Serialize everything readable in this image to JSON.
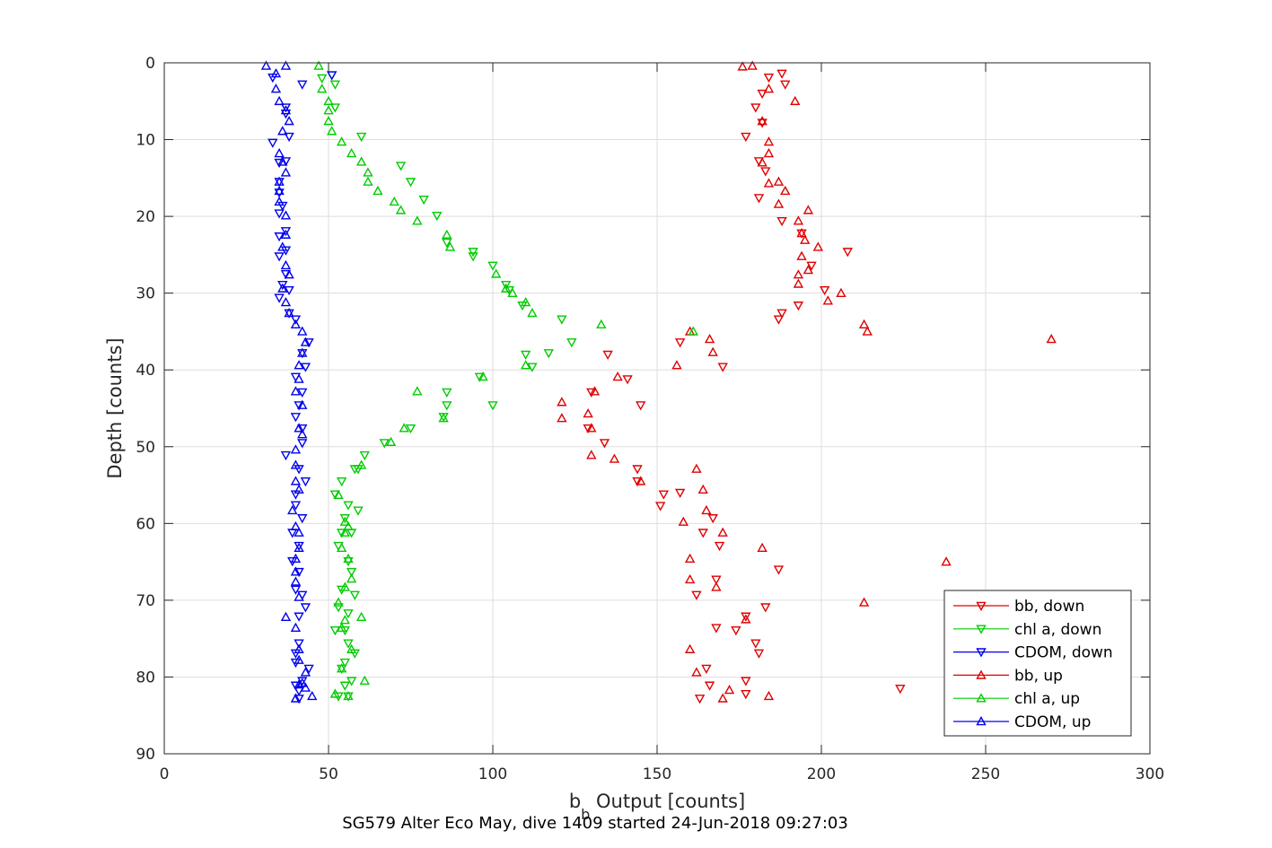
{
  "chart_data": {
    "type": "scatter",
    "xlabel": "b",
    "xlabel_sub": "b",
    "xlabel_rest": " Output [counts]",
    "ylabel": "Depth [counts]",
    "caption": "SG579 Alter Eco May, dive 1409 started 24-Jun-2018 09:27:03",
    "xlim": [
      0,
      300
    ],
    "ylim": [
      0,
      90
    ],
    "y_reversed": true,
    "grid": true,
    "legend_position": "bottom-right",
    "xticks": [
      0,
      50,
      100,
      150,
      200,
      250,
      300
    ],
    "yticks": [
      0,
      10,
      20,
      30,
      40,
      50,
      60,
      70,
      80,
      90
    ],
    "series": [
      {
        "name": "bb, down",
        "color": "#e00000",
        "marker": "triangle-down",
        "points": [
          [
            188,
            1.4
          ],
          [
            184,
            1.9
          ],
          [
            189,
            2.8
          ],
          [
            182,
            4.0
          ],
          [
            180,
            5.8
          ],
          [
            182,
            7.8
          ],
          [
            177,
            9.6
          ],
          [
            181,
            12.8
          ],
          [
            183,
            14.1
          ],
          [
            181,
            17.6
          ],
          [
            188,
            20.6
          ],
          [
            194,
            22.2
          ],
          [
            208,
            24.6
          ],
          [
            197,
            26.4
          ],
          [
            201,
            29.6
          ],
          [
            193,
            31.6
          ],
          [
            188,
            32.6
          ],
          [
            187,
            33.4
          ],
          [
            157,
            36.4
          ],
          [
            135,
            38.0
          ],
          [
            170,
            39.6
          ],
          [
            141,
            41.2
          ],
          [
            130,
            42.9
          ],
          [
            145,
            44.6
          ],
          [
            129,
            47.6
          ],
          [
            134,
            49.5
          ],
          [
            144,
            52.9
          ],
          [
            152,
            56.2
          ],
          [
            144,
            54.5
          ],
          [
            157,
            56.0
          ],
          [
            151,
            57.7
          ],
          [
            167,
            59.3
          ],
          [
            164,
            61.2
          ],
          [
            169,
            62.9
          ],
          [
            187,
            66.0
          ],
          [
            168,
            67.3
          ],
          [
            162,
            69.3
          ],
          [
            183,
            70.9
          ],
          [
            177,
            72.1
          ],
          [
            174,
            73.9
          ],
          [
            168,
            73.6
          ],
          [
            180,
            75.6
          ],
          [
            165,
            78.9
          ],
          [
            181,
            76.9
          ],
          [
            177,
            80.5
          ],
          [
            166,
            81.1
          ],
          [
            177,
            82.2
          ],
          [
            224,
            81.5
          ],
          [
            163,
            82.8
          ]
        ]
      },
      {
        "name": "chl a, down",
        "color": "#00cc00",
        "marker": "triangle-down",
        "points": [
          [
            51,
            1.6
          ],
          [
            48,
            2.0
          ],
          [
            52,
            2.8
          ],
          [
            52,
            5.8
          ],
          [
            60,
            9.6
          ],
          [
            72,
            13.4
          ],
          [
            75,
            15.5
          ],
          [
            79,
            17.8
          ],
          [
            83,
            19.9
          ],
          [
            86,
            23.4
          ],
          [
            94,
            24.6
          ],
          [
            94,
            25.2
          ],
          [
            100,
            26.4
          ],
          [
            104,
            28.9
          ],
          [
            105,
            29.6
          ],
          [
            109,
            31.6
          ],
          [
            121,
            33.4
          ],
          [
            124,
            36.4
          ],
          [
            117,
            37.8
          ],
          [
            110,
            38.0
          ],
          [
            112,
            39.6
          ],
          [
            96,
            40.9
          ],
          [
            86,
            42.9
          ],
          [
            86,
            44.6
          ],
          [
            100,
            44.6
          ],
          [
            85,
            46.1
          ],
          [
            75,
            47.6
          ],
          [
            67,
            49.5
          ],
          [
            61,
            51.1
          ],
          [
            59,
            52.9
          ],
          [
            58,
            52.9
          ],
          [
            54,
            54.5
          ],
          [
            52,
            56.2
          ],
          [
            56,
            57.6
          ],
          [
            59,
            58.3
          ],
          [
            55,
            59.3
          ],
          [
            54,
            61.2
          ],
          [
            57,
            61.2
          ],
          [
            53,
            62.9
          ],
          [
            56,
            64.9
          ],
          [
            57,
            66.3
          ],
          [
            54,
            68.6
          ],
          [
            58,
            69.3
          ],
          [
            53,
            70.9
          ],
          [
            56,
            71.7
          ],
          [
            52,
            73.9
          ],
          [
            55,
            73.9
          ],
          [
            56,
            75.6
          ],
          [
            58,
            76.9
          ],
          [
            55,
            78.1
          ],
          [
            54,
            78.9
          ],
          [
            57,
            80.5
          ],
          [
            55,
            81.1
          ],
          [
            56,
            82.5
          ],
          [
            53,
            82.5
          ]
        ]
      },
      {
        "name": "CDOM, down",
        "color": "#0000ee",
        "marker": "triangle-down",
        "points": [
          [
            33,
            1.9
          ],
          [
            51,
            1.6
          ],
          [
            42,
            2.8
          ],
          [
            37,
            5.8
          ],
          [
            37,
            6.6
          ],
          [
            38,
            9.6
          ],
          [
            33,
            10.4
          ],
          [
            37,
            12.8
          ],
          [
            35,
            13.0
          ],
          [
            35,
            15.5
          ],
          [
            35,
            16.9
          ],
          [
            36,
            18.6
          ],
          [
            35,
            19.6
          ],
          [
            37,
            21.9
          ],
          [
            35,
            22.6
          ],
          [
            37,
            24.4
          ],
          [
            35,
            25.2
          ],
          [
            37,
            27.5
          ],
          [
            36,
            28.9
          ],
          [
            38,
            29.6
          ],
          [
            35,
            30.6
          ],
          [
            38,
            32.6
          ],
          [
            40,
            33.4
          ],
          [
            44,
            36.4
          ],
          [
            42,
            37.8
          ],
          [
            43,
            39.6
          ],
          [
            40,
            40.9
          ],
          [
            42,
            42.9
          ],
          [
            41,
            44.6
          ],
          [
            40,
            46.1
          ],
          [
            42,
            47.6
          ],
          [
            42,
            49.5
          ],
          [
            37,
            51.1
          ],
          [
            41,
            52.9
          ],
          [
            43,
            54.5
          ],
          [
            40,
            56.2
          ],
          [
            40,
            57.6
          ],
          [
            42,
            59.3
          ],
          [
            39,
            61.2
          ],
          [
            41,
            62.9
          ],
          [
            39,
            64.9
          ],
          [
            41,
            66.3
          ],
          [
            40,
            68.6
          ],
          [
            42,
            69.3
          ],
          [
            43,
            70.9
          ],
          [
            41,
            72.1
          ],
          [
            41,
            75.6
          ],
          [
            40,
            76.9
          ],
          [
            40,
            78.1
          ],
          [
            44,
            78.9
          ],
          [
            42,
            80.5
          ],
          [
            40,
            81.1
          ],
          [
            41,
            81.8
          ],
          [
            41,
            82.8
          ]
        ]
      },
      {
        "name": "bb, up",
        "color": "#e00000",
        "marker": "triangle-up",
        "points": [
          [
            176,
            0.5
          ],
          [
            179,
            0.4
          ],
          [
            184,
            3.4
          ],
          [
            192,
            5.0
          ],
          [
            182,
            7.6
          ],
          [
            184,
            10.3
          ],
          [
            184,
            11.8
          ],
          [
            182,
            13.0
          ],
          [
            187,
            15.5
          ],
          [
            189,
            16.7
          ],
          [
            184,
            15.7
          ],
          [
            187,
            18.4
          ],
          [
            196,
            19.2
          ],
          [
            193,
            20.6
          ],
          [
            199,
            24.0
          ],
          [
            194,
            22.2
          ],
          [
            195,
            23.1
          ],
          [
            194,
            25.2
          ],
          [
            196,
            27.0
          ],
          [
            193,
            27.6
          ],
          [
            193,
            28.8
          ],
          [
            206,
            30.0
          ],
          [
            202,
            31.0
          ],
          [
            213,
            34.1
          ],
          [
            214,
            35.0
          ],
          [
            270,
            36.0
          ],
          [
            166,
            36.0
          ],
          [
            167,
            37.7
          ],
          [
            160,
            35.0
          ],
          [
            156,
            39.4
          ],
          [
            138,
            40.9
          ],
          [
            131,
            42.8
          ],
          [
            121,
            44.2
          ],
          [
            129,
            45.7
          ],
          [
            121,
            46.3
          ],
          [
            130,
            47.6
          ],
          [
            130,
            51.1
          ],
          [
            137,
            51.6
          ],
          [
            145,
            54.5
          ],
          [
            162,
            52.9
          ],
          [
            164,
            55.6
          ],
          [
            158,
            59.8
          ],
          [
            165,
            58.3
          ],
          [
            170,
            61.2
          ],
          [
            182,
            63.2
          ],
          [
            238,
            65.0
          ],
          [
            160,
            64.6
          ],
          [
            160,
            67.3
          ],
          [
            168,
            68.3
          ],
          [
            213,
            70.3
          ],
          [
            177,
            72.5
          ],
          [
            160,
            76.4
          ],
          [
            162,
            79.4
          ],
          [
            172,
            81.7
          ],
          [
            170,
            82.8
          ],
          [
            184,
            82.5
          ]
        ]
      },
      {
        "name": "chl a, up",
        "color": "#00cc00",
        "marker": "triangle-up",
        "points": [
          [
            47,
            0.4
          ],
          [
            48,
            3.4
          ],
          [
            50,
            5.0
          ],
          [
            50,
            6.2
          ],
          [
            50,
            7.6
          ],
          [
            51,
            8.9
          ],
          [
            54,
            10.3
          ],
          [
            57,
            11.8
          ],
          [
            60,
            12.9
          ],
          [
            62,
            14.3
          ],
          [
            62,
            15.5
          ],
          [
            65,
            16.7
          ],
          [
            70,
            18.1
          ],
          [
            72,
            19.2
          ],
          [
            77,
            20.6
          ],
          [
            86,
            22.4
          ],
          [
            87,
            24.0
          ],
          [
            101,
            27.5
          ],
          [
            104,
            29.4
          ],
          [
            106,
            30.0
          ],
          [
            110,
            31.2
          ],
          [
            112,
            32.6
          ],
          [
            133,
            34.1
          ],
          [
            161,
            35.0
          ],
          [
            110,
            39.4
          ],
          [
            97,
            40.9
          ],
          [
            77,
            42.8
          ],
          [
            85,
            46.3
          ],
          [
            73,
            47.6
          ],
          [
            69,
            49.4
          ],
          [
            60,
            52.4
          ],
          [
            53,
            56.3
          ],
          [
            55,
            59.8
          ],
          [
            56,
            60.4
          ],
          [
            55,
            61.2
          ],
          [
            54,
            63.2
          ],
          [
            56,
            64.6
          ],
          [
            57,
            67.2
          ],
          [
            55,
            68.3
          ],
          [
            53,
            70.3
          ],
          [
            60,
            72.2
          ],
          [
            55,
            72.6
          ],
          [
            54,
            73.6
          ],
          [
            57,
            76.4
          ],
          [
            54,
            78.9
          ],
          [
            61,
            80.5
          ],
          [
            52,
            82.2
          ],
          [
            56,
            82.5
          ]
        ]
      },
      {
        "name": "CDOM, up",
        "color": "#0000ee",
        "marker": "triangle-up",
        "points": [
          [
            31,
            0.4
          ],
          [
            37,
            0.4
          ],
          [
            34,
            1.4
          ],
          [
            34,
            3.4
          ],
          [
            35,
            5.0
          ],
          [
            37,
            6.2
          ],
          [
            38,
            7.6
          ],
          [
            36,
            8.9
          ],
          [
            35,
            11.8
          ],
          [
            36,
            12.9
          ],
          [
            37,
            14.3
          ],
          [
            35,
            15.5
          ],
          [
            35,
            16.7
          ],
          [
            35,
            18.1
          ],
          [
            37,
            19.9
          ],
          [
            37,
            22.4
          ],
          [
            36,
            24.0
          ],
          [
            37,
            26.4
          ],
          [
            38,
            27.6
          ],
          [
            36,
            29.4
          ],
          [
            37,
            31.2
          ],
          [
            38,
            32.6
          ],
          [
            40,
            34.1
          ],
          [
            42,
            35.0
          ],
          [
            43,
            36.4
          ],
          [
            42,
            37.8
          ],
          [
            41,
            39.4
          ],
          [
            41,
            41.2
          ],
          [
            40,
            42.8
          ],
          [
            42,
            44.6
          ],
          [
            41,
            47.6
          ],
          [
            42,
            48.4
          ],
          [
            40,
            50.4
          ],
          [
            40,
            52.4
          ],
          [
            40,
            54.5
          ],
          [
            41,
            55.6
          ],
          [
            39,
            58.3
          ],
          [
            40,
            60.4
          ],
          [
            41,
            61.2
          ],
          [
            41,
            63.2
          ],
          [
            40,
            64.6
          ],
          [
            40,
            66.3
          ],
          [
            40,
            67.6
          ],
          [
            41,
            69.6
          ],
          [
            37,
            72.2
          ],
          [
            40,
            73.6
          ],
          [
            41,
            76.4
          ],
          [
            41,
            77.8
          ],
          [
            43,
            79.4
          ],
          [
            42,
            80.8
          ],
          [
            43,
            81.4
          ],
          [
            45,
            82.5
          ],
          [
            40,
            82.8
          ],
          [
            41,
            81.0
          ]
        ]
      }
    ]
  }
}
